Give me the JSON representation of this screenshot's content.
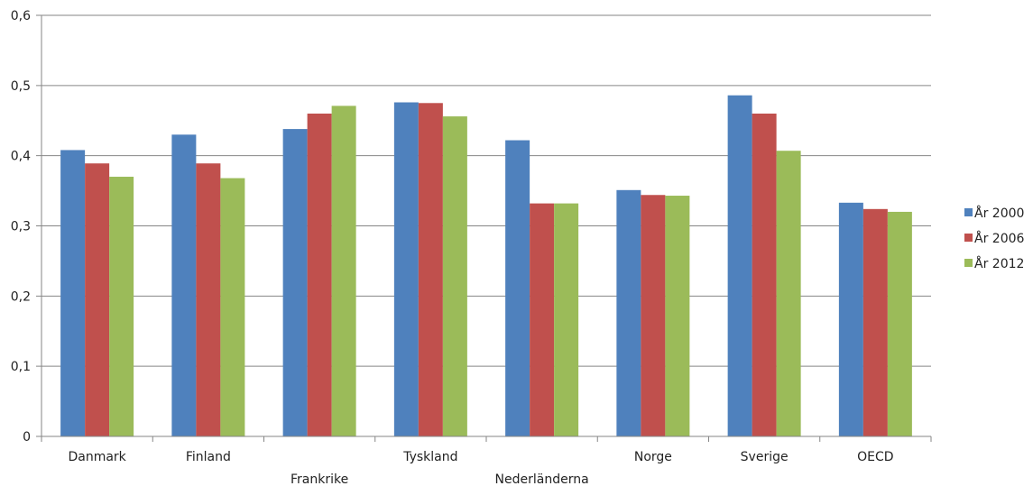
{
  "chart_data": {
    "type": "bar",
    "categories": [
      "Danmark",
      "Finland",
      "Frankrike",
      "Tyskland",
      "Nederländerna",
      "Norge",
      "Sverige",
      "OECD"
    ],
    "series": [
      {
        "name": "År 2000",
        "color": "#4F81BD",
        "values": [
          0.408,
          0.43,
          0.438,
          0.476,
          0.422,
          0.351,
          0.486,
          0.333
        ]
      },
      {
        "name": "År 2006",
        "color": "#C0504D",
        "values": [
          0.389,
          0.389,
          0.46,
          0.475,
          0.332,
          0.344,
          0.46,
          0.324
        ]
      },
      {
        "name": "År 2012",
        "color": "#9BBB59",
        "values": [
          0.37,
          0.368,
          0.471,
          0.456,
          0.332,
          0.343,
          0.407,
          0.32
        ]
      }
    ],
    "yticks": [
      "0",
      "0,1",
      "0,2",
      "0,3",
      "0,4",
      "0,5",
      "0,6"
    ],
    "ylim": [
      0,
      0.6
    ],
    "grid": true,
    "legend_position": "right"
  }
}
